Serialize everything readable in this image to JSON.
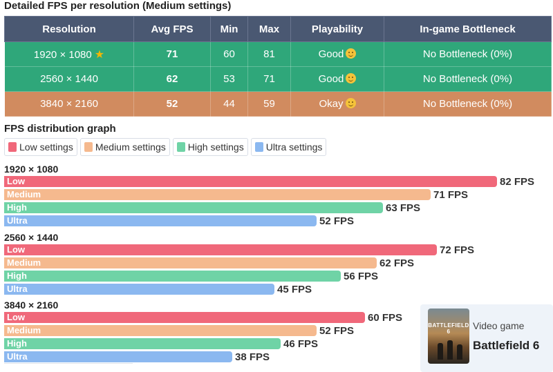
{
  "table": {
    "title": "Detailed FPS per resolution (Medium settings)",
    "headers": [
      "Resolution",
      "Avg FPS",
      "Min",
      "Max",
      "Playability",
      "In-game Bottleneck"
    ],
    "rows": [
      {
        "resolution": "1920 × 1080",
        "avg": "71",
        "min": "60",
        "max": "81",
        "playability": "Good",
        "bottleneck": "No Bottleneck (0%)",
        "star": true,
        "status": "good"
      },
      {
        "resolution": "2560 × 1440",
        "avg": "62",
        "min": "53",
        "max": "71",
        "playability": "Good",
        "bottleneck": "No Bottleneck (0%)",
        "star": false,
        "status": "good"
      },
      {
        "resolution": "3840 × 2160",
        "avg": "52",
        "min": "44",
        "max": "59",
        "playability": "Okay",
        "bottleneck": "No Bottleneck (0%)",
        "star": false,
        "status": "okay"
      }
    ]
  },
  "graph": {
    "title": "FPS distribution graph",
    "legend": [
      {
        "label": "Low settings",
        "color": "#f0687a"
      },
      {
        "label": "Medium settings",
        "color": "#f5b98e"
      },
      {
        "label": "High settings",
        "color": "#6fd3a6"
      },
      {
        "label": "Ultra settings",
        "color": "#8bb8f0"
      }
    ]
  },
  "chart_data": {
    "type": "bar",
    "title": "FPS distribution graph",
    "unit": "FPS",
    "value_suffix": " FPS",
    "groups": [
      {
        "name": "1920 × 1080",
        "bars": [
          {
            "label": "Low",
            "value": 82
          },
          {
            "label": "Medium",
            "value": 71
          },
          {
            "label": "High",
            "value": 63
          },
          {
            "label": "Ultra",
            "value": 52
          }
        ]
      },
      {
        "name": "2560 × 1440",
        "bars": [
          {
            "label": "Low",
            "value": 72
          },
          {
            "label": "Medium",
            "value": 62
          },
          {
            "label": "High",
            "value": 56
          },
          {
            "label": "Ultra",
            "value": 45
          }
        ]
      },
      {
        "name": "3840 × 2160",
        "bars": [
          {
            "label": "Low",
            "value": 60
          },
          {
            "label": "Medium",
            "value": 52
          },
          {
            "label": "High",
            "value": 46
          },
          {
            "label": "Ultra",
            "value": 38
          }
        ]
      }
    ],
    "colors": {
      "Low": "#f0687a",
      "Medium": "#f5b98e",
      "High": "#6fd3a6",
      "Ultra": "#8bb8f0"
    },
    "xlim": [
      0,
      82
    ]
  },
  "game_card": {
    "type_label": "Video game",
    "name": "Battlefield 6",
    "cover_text": "BATTLEFIELD 6"
  }
}
